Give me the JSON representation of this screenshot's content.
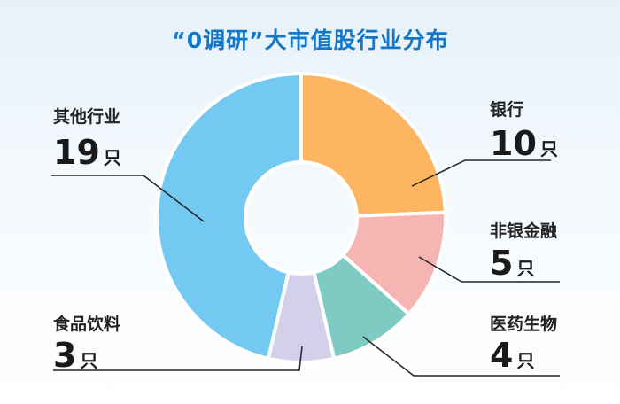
{
  "chart_data": {
    "type": "pie",
    "style": "donut",
    "title": "“0调研”大市值股行业分布",
    "unit": "只",
    "slices": [
      {
        "label": "银行",
        "value": 10,
        "color": "#fdb562"
      },
      {
        "label": "非银金融",
        "value": 5,
        "color": "#f4b5b3"
      },
      {
        "label": "医药生物",
        "value": 4,
        "color": "#7ecbc3"
      },
      {
        "label": "食品饮料",
        "value": 3,
        "color": "#d3d1ea"
      },
      {
        "label": "其他行业",
        "value": 19,
        "color": "#74c9f2"
      }
    ],
    "start": "top",
    "direction": "clockwise"
  }
}
